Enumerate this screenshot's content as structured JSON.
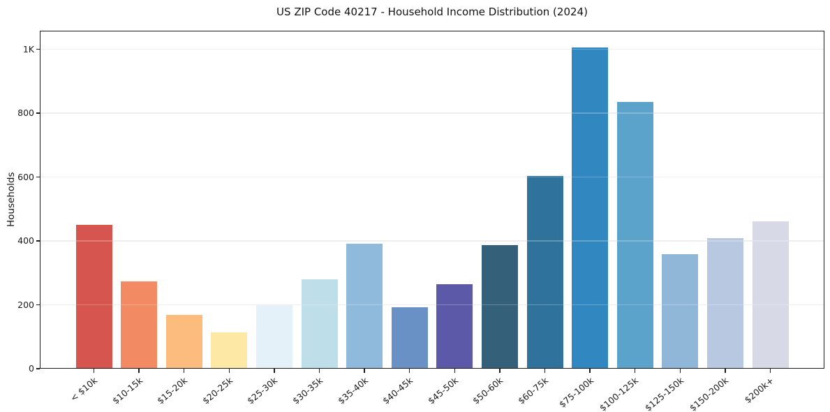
{
  "page": {
    "background": "#ffffff"
  },
  "chart_data": {
    "type": "bar",
    "title": "US ZIP Code 40217 - Household Income Distribution (2024)",
    "xlabel": "",
    "ylabel": "Households",
    "categories": [
      "< $10k",
      "$10-15k",
      "$15-20k",
      "$20-25k",
      "$25-30k",
      "$30-35k",
      "$35-40k",
      "$40-45k",
      "$45-50k",
      "$50-60k",
      "$60-75k",
      "$75-100k",
      "$100-125k",
      "$125-150k",
      "$150-200k",
      "$200k+"
    ],
    "values": [
      450,
      274,
      168,
      114,
      200,
      280,
      392,
      193,
      265,
      386,
      604,
      1005,
      836,
      359,
      409,
      462
    ],
    "bar_colors": [
      "#d6554e",
      "#f28a63",
      "#fbbc7e",
      "#fee8a6",
      "#e4f1f8",
      "#bedfea",
      "#90badb",
      "#6a91c5",
      "#5c59a8",
      "#35607a",
      "#2f739d",
      "#3187c0",
      "#5ba3cb",
      "#90b7d7",
      "#b9c8e1",
      "#d7d9e7"
    ],
    "yticks": [
      {
        "value": 0,
        "label": "0"
      },
      {
        "value": 200,
        "label": "200"
      },
      {
        "value": 400,
        "label": "400"
      },
      {
        "value": 600,
        "label": "600"
      },
      {
        "value": 800,
        "label": "800"
      },
      {
        "value": 1000,
        "label": "1K"
      }
    ],
    "ylim": [
      0,
      1058
    ],
    "grid": "horizontal",
    "grid_color": "#e9e9ed",
    "spine_color": "#1a1a1a",
    "legend": "none",
    "x_tick_rotation_deg": -40
  }
}
